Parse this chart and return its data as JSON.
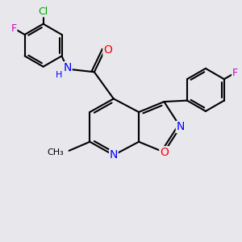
{
  "bg_color": "#e8e8ec",
  "bond_color": "#000000",
  "bond_width": 1.5,
  "atom_colors": {
    "N": "#0000ff",
    "O": "#ff0000",
    "F": "#cc00cc",
    "Cl": "#00aa00",
    "C": "#000000"
  },
  "font_size": 9
}
